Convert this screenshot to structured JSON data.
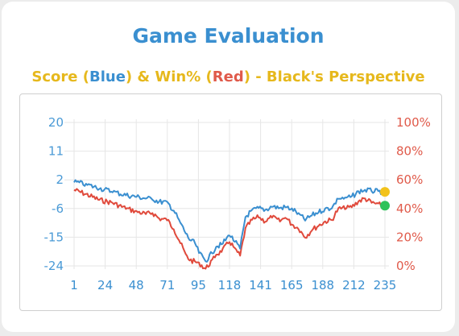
{
  "card": {
    "title": "Game Evaluation",
    "subtitle_parts": {
      "p1": "Score (",
      "blue": "Blue",
      "p2": ") & Win% (",
      "red": "Red",
      "p3": ") - Black's Perspective"
    }
  },
  "colors": {
    "score": "#3a8fd0",
    "winpct": "#e04a3c",
    "score_marker": "#f2c21b",
    "win_marker": "#2fc25a",
    "grid": "#e6e6e6"
  },
  "chart_data": {
    "type": "line",
    "title": "",
    "xlabel": "",
    "ylabel": "",
    "x_ticks": [
      "1",
      "24",
      "48",
      "71",
      "95",
      "118",
      "141",
      "165",
      "188",
      "212",
      "235"
    ],
    "y_left_ticks": [
      "20",
      "11",
      "2",
      "-6",
      "-15",
      "-24"
    ],
    "y_right_ticks": [
      "100%",
      "80%",
      "60%",
      "40%",
      "20%",
      "0%"
    ],
    "xlim": [
      1,
      235
    ],
    "ylim_left": [
      -24,
      20
    ],
    "ylim_right": [
      0,
      100
    ],
    "grid": true,
    "series": [
      {
        "axis": "left",
        "x": [
          1,
          10,
          20,
          30,
          40,
          48,
          55,
          60,
          65,
          71,
          76,
          80,
          85,
          88,
          92,
          95,
          100,
          105,
          108,
          112,
          118,
          122,
          126,
          130,
          135,
          140,
          145,
          150,
          156,
          160,
          165,
          170,
          175,
          180,
          185,
          190,
          195,
          200,
          205,
          210,
          215,
          220,
          225,
          230,
          235
        ],
        "values": [
          1.8,
          1,
          -0.2,
          -1.2,
          -2.3,
          -2.8,
          -3.3,
          -3.5,
          -4.3,
          -4.5,
          -7,
          -10,
          -14,
          -16,
          -17,
          -20,
          -22.5,
          -20,
          -18,
          -17.5,
          -14.5,
          -16.5,
          -18.8,
          -9,
          -7,
          -6.3,
          -6.8,
          -5.8,
          -6.2,
          -6,
          -6.5,
          -8,
          -10,
          -8.5,
          -7.5,
          -6.5,
          -6.2,
          -3.3,
          -3.2,
          -2.8,
          -1.2,
          -0.7,
          -1,
          -1.2,
          -1.3
        ]
      },
      {
        "axis": "right",
        "x": [
          1,
          10,
          20,
          30,
          40,
          48,
          55,
          60,
          65,
          71,
          76,
          80,
          85,
          88,
          92,
          95,
          100,
          105,
          108,
          112,
          118,
          122,
          126,
          130,
          135,
          140,
          145,
          150,
          156,
          160,
          165,
          170,
          175,
          180,
          185,
          190,
          195,
          200,
          205,
          210,
          215,
          220,
          225,
          230,
          235
        ],
        "values": [
          53,
          50,
          46,
          44,
          40,
          38,
          36,
          37,
          33,
          32,
          26,
          18,
          8,
          4,
          3,
          2,
          -2,
          4,
          8,
          10,
          17,
          12,
          7,
          26,
          32,
          34,
          31,
          34,
          31,
          34,
          29,
          26,
          20,
          25,
          28,
          31,
          32,
          40,
          40,
          41,
          45,
          47,
          44,
          43,
          42
        ]
      }
    ],
    "end_markers": [
      {
        "axis": "left",
        "x": 235,
        "value": -1.3
      },
      {
        "axis": "right",
        "x": 235,
        "value": 42
      }
    ]
  }
}
